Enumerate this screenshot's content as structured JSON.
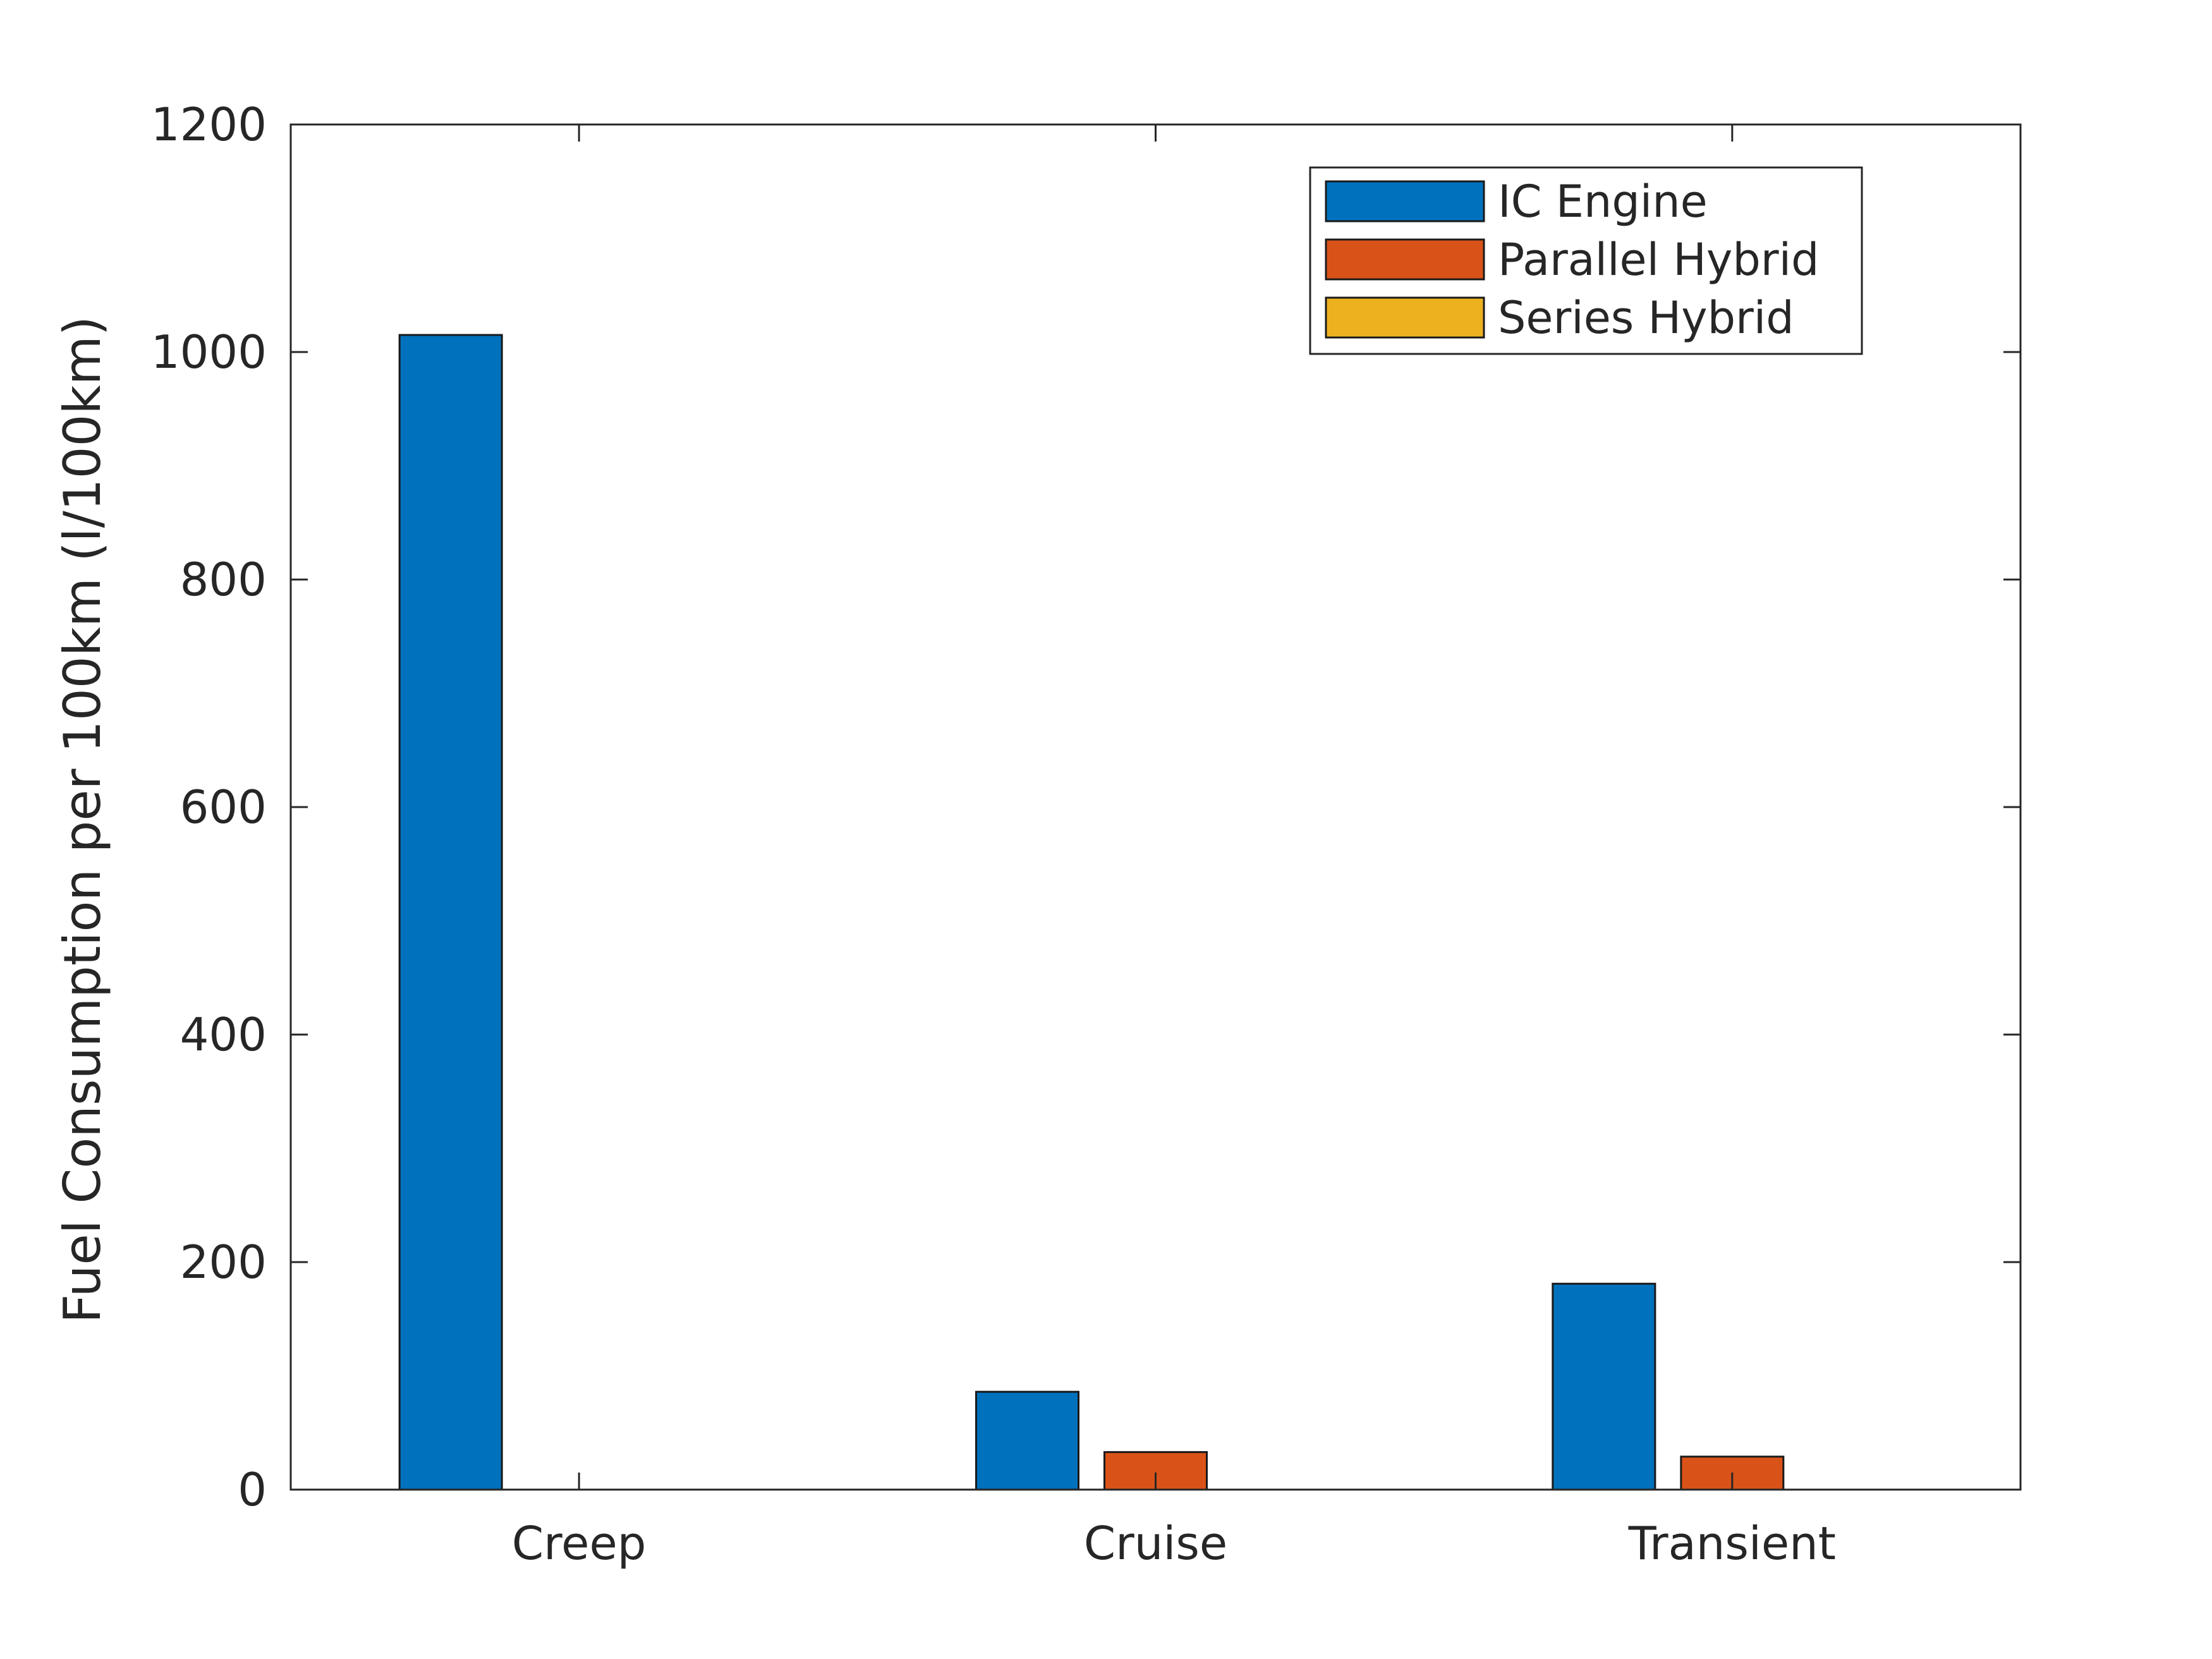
{
  "chart_data": {
    "type": "bar",
    "title": "",
    "xlabel": "",
    "ylabel": "Fuel Consumption per 100km (l/100km)",
    "ylim": [
      0,
      1200
    ],
    "yticks": [
      "0",
      "200",
      "400",
      "600",
      "800",
      "1000",
      "1200"
    ],
    "yticks_values": [
      0,
      200,
      400,
      600,
      800,
      1000,
      1200
    ],
    "categories": [
      "Creep",
      "Cruise",
      "Transient"
    ],
    "grid": false,
    "legend_position": "top-right",
    "series": [
      {
        "name": "IC Engine",
        "color": "#0072BD",
        "values": [
          1015,
          86,
          181
        ]
      },
      {
        "name": "Parallel Hybrid",
        "color": "#D95319",
        "values": [
          0,
          33,
          29
        ]
      },
      {
        "name": "Series Hybrid",
        "color": "#EDB120",
        "values": [
          0,
          0,
          0
        ]
      }
    ]
  }
}
